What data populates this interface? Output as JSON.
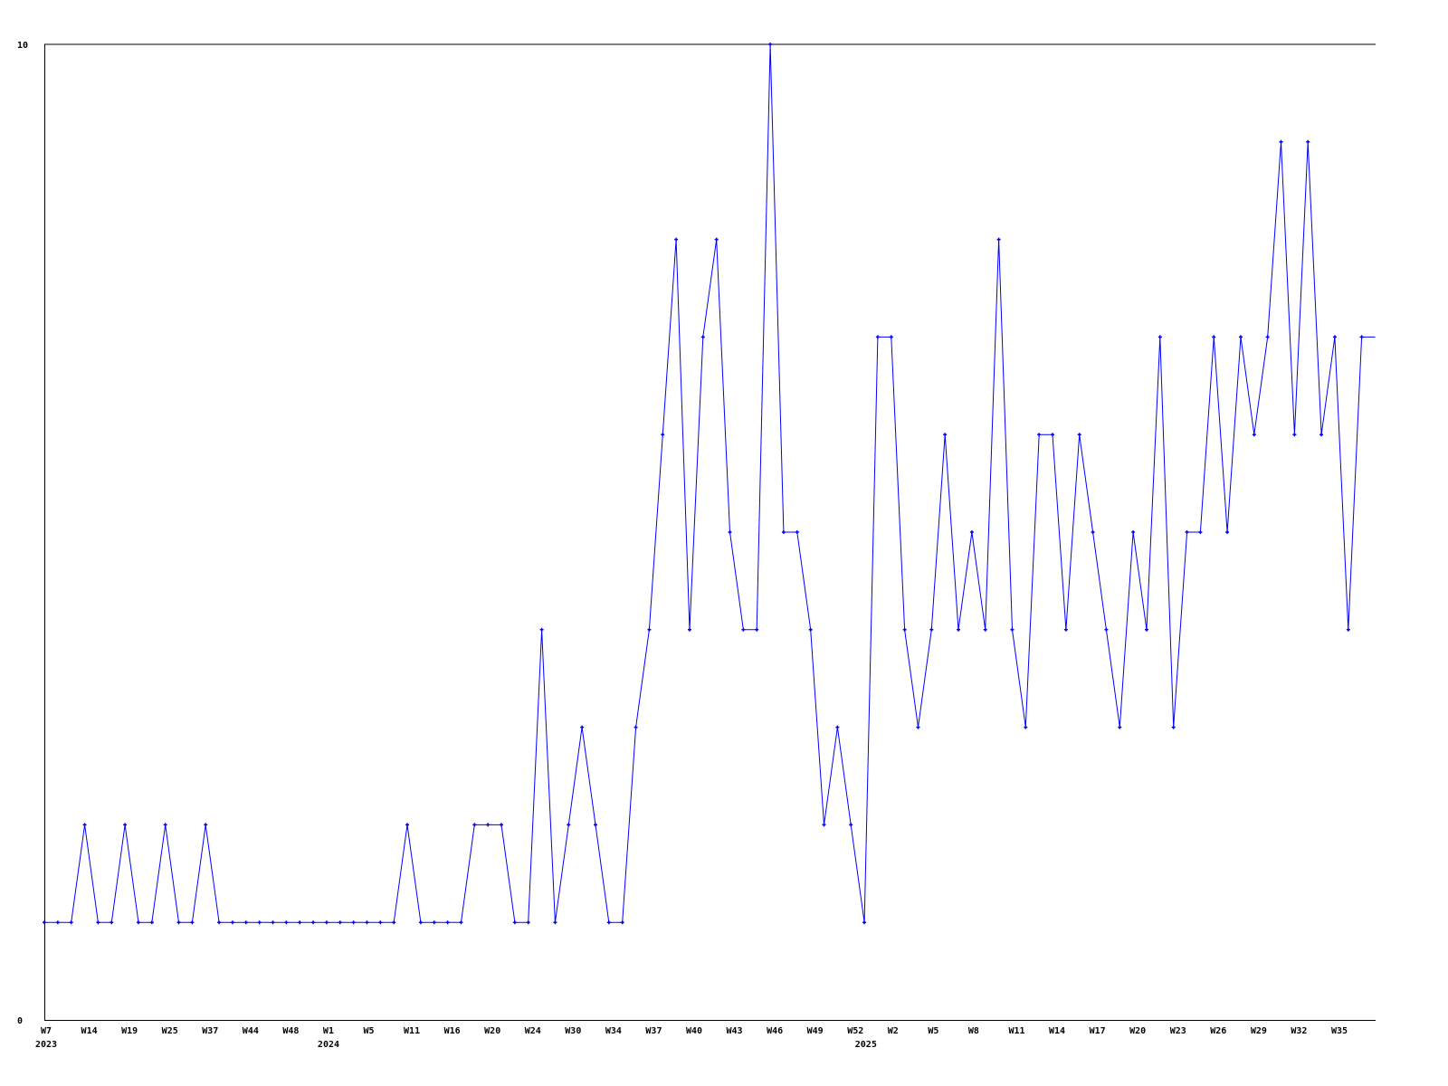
{
  "chart_data": {
    "type": "line",
    "title": "",
    "xlabel": "",
    "ylabel": "",
    "ylim": [
      0,
      10
    ],
    "yticks": [
      "0",
      "10"
    ],
    "grid": false,
    "line_color": "#0000ff",
    "values": [
      1,
      1,
      1,
      2,
      1,
      1,
      2,
      1,
      1,
      2,
      1,
      1,
      2,
      1,
      1,
      1,
      1,
      1,
      1,
      1,
      1,
      1,
      1,
      1,
      1,
      1,
      1,
      2,
      1,
      1,
      1,
      1,
      2,
      2,
      2,
      1,
      1,
      4,
      1,
      2,
      3,
      2,
      1,
      1,
      3,
      4,
      6,
      8,
      4,
      7,
      8,
      5,
      4,
      4,
      10,
      5,
      5,
      4,
      2,
      3,
      2,
      1,
      7,
      7,
      4,
      3,
      4,
      6,
      4,
      5,
      4,
      8,
      4,
      3,
      6,
      6,
      4,
      6,
      5,
      4,
      3,
      5,
      4,
      7,
      3,
      5,
      5,
      7,
      5,
      7,
      6,
      7,
      9,
      6,
      9,
      6,
      7,
      4,
      7,
      7
    ],
    "xticks": [
      {
        "index": 0,
        "label": "W7",
        "year": "2023"
      },
      {
        "index": 3,
        "label": "W14"
      },
      {
        "index": 6,
        "label": "W19"
      },
      {
        "index": 9,
        "label": "W25"
      },
      {
        "index": 12,
        "label": "W37"
      },
      {
        "index": 15,
        "label": "W44"
      },
      {
        "index": 18,
        "label": "W48"
      },
      {
        "index": 21,
        "label": "W1",
        "year": "2024"
      },
      {
        "index": 24,
        "label": "W5"
      },
      {
        "index": 27,
        "label": "W11"
      },
      {
        "index": 30,
        "label": "W16"
      },
      {
        "index": 33,
        "label": "W20"
      },
      {
        "index": 36,
        "label": "W24"
      },
      {
        "index": 39,
        "label": "W30"
      },
      {
        "index": 42,
        "label": "W34"
      },
      {
        "index": 45,
        "label": "W37"
      },
      {
        "index": 48,
        "label": "W40"
      },
      {
        "index": 51,
        "label": "W43"
      },
      {
        "index": 54,
        "label": "W46"
      },
      {
        "index": 57,
        "label": "W49"
      },
      {
        "index": 60,
        "label": "W52"
      },
      {
        "index": 63,
        "label": "W2",
        "year": "2025"
      },
      {
        "index": 66,
        "label": "W5"
      },
      {
        "index": 69,
        "label": "W8"
      },
      {
        "index": 72,
        "label": "W11"
      },
      {
        "index": 75,
        "label": "W14"
      },
      {
        "index": 78,
        "label": "W17"
      },
      {
        "index": 81,
        "label": "W20"
      },
      {
        "index": 84,
        "label": "W23"
      },
      {
        "index": 87,
        "label": "W26"
      },
      {
        "index": 90,
        "label": "W29"
      },
      {
        "index": 93,
        "label": "W32"
      },
      {
        "index": 96,
        "label": "W35"
      }
    ]
  }
}
